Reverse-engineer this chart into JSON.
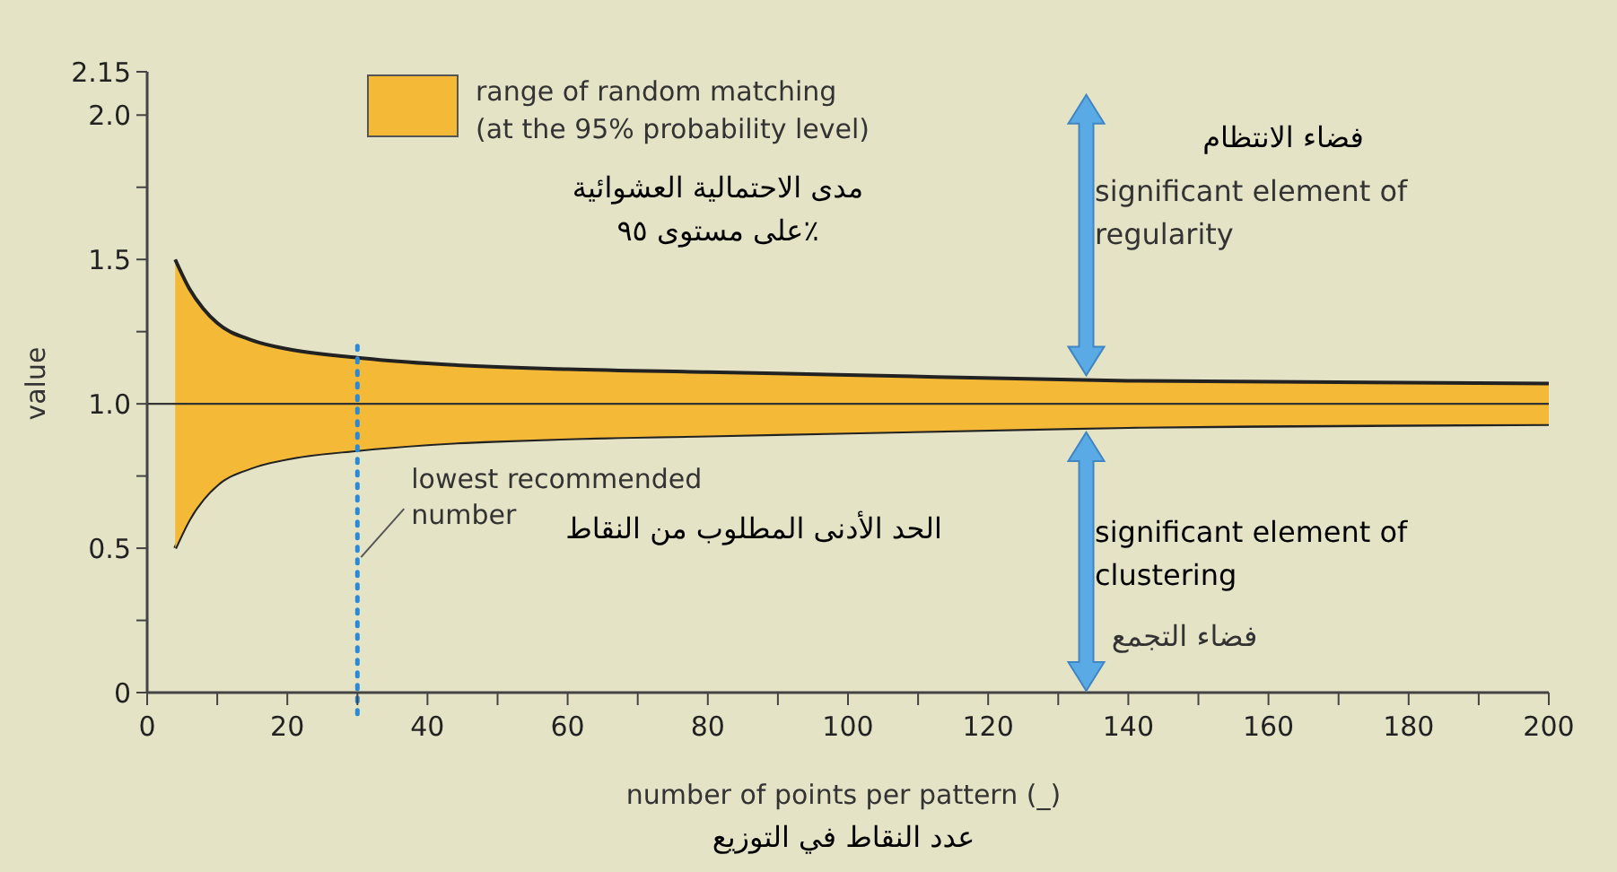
{
  "chart_data": {
    "type": "area",
    "xlabel": "number of points per pattern (_)",
    "ylabel": "value",
    "xlim": [
      0,
      200
    ],
    "xticks": [
      0,
      {
        "value": 10,
        "label": null
      },
      20,
      {
        "value": 30,
        "label": null
      },
      40,
      {
        "value": 50,
        "label": null
      },
      60,
      {
        "value": 70,
        "label": null
      },
      80,
      {
        "value": 90,
        "label": null
      },
      100,
      {
        "value": 110,
        "label": null
      },
      120,
      {
        "value": 130,
        "label": null
      },
      140,
      {
        "value": 150,
        "label": null
      },
      160,
      {
        "value": 170,
        "label": null
      },
      180,
      {
        "value": 190,
        "label": null
      },
      200
    ],
    "ylim": [
      0,
      2.15
    ],
    "yticks": [
      0,
      {
        "value": 0.25,
        "label": null
      },
      0.5,
      {
        "value": 0.75,
        "label": null
      },
      {
        "value": 1.0,
        "label": "1.0"
      },
      {
        "value": 1.25,
        "label": null
      },
      1.5,
      {
        "value": 1.75,
        "label": null
      },
      {
        "value": 2.0,
        "label": "2.0"
      },
      2.15
    ],
    "series": [
      {
        "type": "area",
        "color": "#e4e3c6",
        "x": [
          4,
          6,
          8,
          10,
          15,
          20,
          30,
          40,
          60,
          80,
          100,
          140,
          200
        ],
        "values": [
          0.5,
          0.6,
          0.67,
          0.72,
          0.78,
          0.81,
          0.84,
          0.86,
          0.88,
          0.89,
          0.9,
          0.92,
          0.93
        ]
      },
      {
        "type": "area",
        "name": "range of random matching (at the 95% probability level)",
        "color": "#f4b936",
        "x": [
          4,
          6,
          8,
          10,
          15,
          20,
          30,
          40,
          60,
          80,
          100,
          140,
          200
        ],
        "values": [
          1.0,
          0.8,
          0.66,
          0.56,
          0.44,
          0.38,
          0.32,
          0.28,
          0.24,
          0.22,
          0.2,
          0.16,
          0.14
        ]
      }
    ],
    "ref_lines": [
      {
        "axis": "y",
        "value": 1.0,
        "color": "#333333",
        "line_style": "solid"
      },
      {
        "axis": "x",
        "value": 30,
        "label": "lowest recommended number",
        "color": "#2a8ad8",
        "line_style": "dotted"
      }
    ],
    "annotations": [
      "significant element of regularity",
      "فضاء الانتظام",
      "مدى الاحتمالية العشوائية على مستوى ٩٥٪",
      "significant element of clustering",
      "فضاء التجمع",
      "الحد الأدنى المطلوب من النقاط",
      "عدد النقاط في التوزيع"
    ],
    "stacked": true,
    "legend": "top",
    "grid": false,
    "marker": "none"
  }
}
